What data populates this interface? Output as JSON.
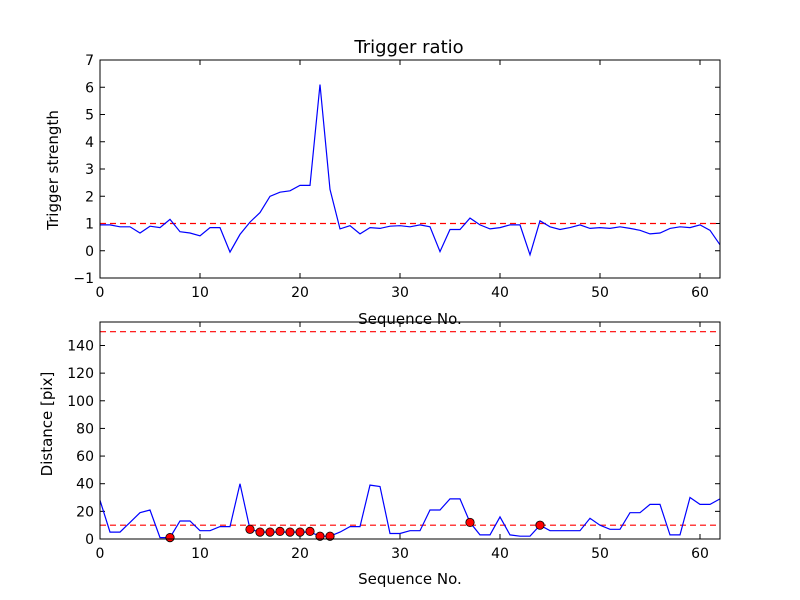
{
  "figure": {
    "background": "#ffffff"
  },
  "chart_data": [
    {
      "type": "line",
      "title": "Trigger ratio",
      "xlabel": "Sequence No.",
      "ylabel": "Trigger strength",
      "xlim": [
        0,
        62
      ],
      "ylim": [
        -1,
        7
      ],
      "xticks": [
        0,
        10,
        20,
        30,
        40,
        50,
        60
      ],
      "yticks": [
        -1,
        0,
        1,
        2,
        3,
        4,
        5,
        6,
        7
      ],
      "ytick_labels": [
        "−1",
        "0",
        "1",
        "2",
        "3",
        "4",
        "5",
        "6",
        "7"
      ],
      "grid": false,
      "series": [
        {
          "color": "#0000ff",
          "x": [
            0,
            1,
            2,
            3,
            4,
            5,
            6,
            7,
            8,
            9,
            10,
            11,
            12,
            13,
            14,
            15,
            16,
            17,
            18,
            19,
            20,
            21,
            22,
            23,
            24,
            25,
            26,
            27,
            28,
            29,
            30,
            31,
            32,
            33,
            34,
            35,
            36,
            37,
            38,
            39,
            40,
            41,
            42,
            43,
            44,
            45,
            46,
            47,
            48,
            49,
            50,
            51,
            52,
            53,
            54,
            55,
            56,
            57,
            58,
            59,
            60,
            61,
            62
          ],
          "y": [
            0.95,
            0.95,
            0.88,
            0.88,
            0.65,
            0.9,
            0.85,
            1.15,
            0.7,
            0.65,
            0.55,
            0.85,
            0.85,
            -0.05,
            0.6,
            1.05,
            1.4,
            2.0,
            2.15,
            2.2,
            2.4,
            2.4,
            6.1,
            2.25,
            0.8,
            0.92,
            0.62,
            0.85,
            0.82,
            0.9,
            0.92,
            0.88,
            0.95,
            0.88,
            -0.03,
            0.78,
            0.78,
            1.2,
            0.95,
            0.8,
            0.85,
            0.95,
            0.95,
            -0.15,
            1.1,
            0.88,
            0.78,
            0.85,
            0.95,
            0.82,
            0.85,
            0.82,
            0.88,
            0.82,
            0.75,
            0.62,
            0.65,
            0.82,
            0.88,
            0.85,
            0.95,
            0.75,
            0.22
          ]
        }
      ],
      "hlines": [
        {
          "y": 1,
          "color": "#ff0000",
          "style": "dashed"
        }
      ]
    },
    {
      "type": "line",
      "title": "",
      "xlabel": "Sequence No.",
      "ylabel": "Distance [pix]",
      "xlim": [
        0,
        62
      ],
      "ylim": [
        0,
        157
      ],
      "xticks": [
        0,
        10,
        20,
        30,
        40,
        50,
        60
      ],
      "yticks": [
        0,
        20,
        40,
        60,
        80,
        100,
        120,
        140
      ],
      "ytick_labels": [
        "0",
        "20",
        "40",
        "60",
        "80",
        "100",
        "120",
        "140"
      ],
      "grid": false,
      "series": [
        {
          "color": "#0000ff",
          "x": [
            0,
            1,
            2,
            3,
            4,
            5,
            6,
            7,
            8,
            9,
            10,
            11,
            12,
            13,
            14,
            15,
            16,
            17,
            18,
            19,
            20,
            21,
            22,
            23,
            24,
            25,
            26,
            27,
            28,
            29,
            30,
            31,
            32,
            33,
            34,
            35,
            36,
            37,
            38,
            39,
            40,
            41,
            42,
            43,
            44,
            45,
            46,
            47,
            48,
            49,
            50,
            51,
            52,
            53,
            54,
            55,
            56,
            57,
            58,
            59,
            60,
            61,
            62
          ],
          "y": [
            28,
            5,
            5,
            12,
            19,
            21,
            1,
            1,
            13,
            13,
            6,
            6,
            9,
            9,
            40,
            7,
            5,
            5,
            5,
            5,
            5,
            5,
            2,
            2,
            5,
            9,
            9,
            39,
            38,
            4,
            4,
            6,
            6,
            21,
            21,
            29,
            29,
            12,
            3,
            3,
            16,
            3,
            2,
            2,
            10,
            6,
            6,
            6,
            6,
            15,
            10,
            7,
            7,
            19,
            19,
            25,
            25,
            3,
            3,
            30,
            25,
            25,
            29
          ]
        }
      ],
      "markers": {
        "color": "#ff0000",
        "x": [
          7,
          15,
          16,
          17,
          18,
          19,
          20,
          21,
          22,
          23,
          37,
          44
        ],
        "y": [
          1,
          7,
          5,
          5,
          5.5,
          5,
          5,
          5.5,
          2,
          2,
          12,
          10
        ]
      },
      "hlines": [
        {
          "y": 10,
          "color": "#ff0000",
          "style": "dashed"
        },
        {
          "y": 150,
          "color": "#ff0000",
          "style": "dashed"
        }
      ]
    }
  ]
}
